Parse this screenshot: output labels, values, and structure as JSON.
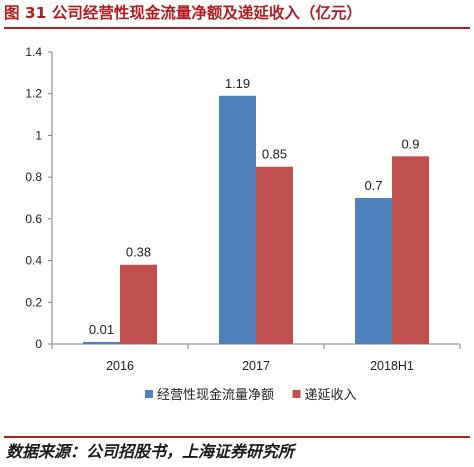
{
  "header": {
    "title": "图 31  公司经营性现金流量净额及递延收入（亿元）"
  },
  "footer": {
    "source": "数据来源：公司招股书，上海证券研究所"
  },
  "colors": {
    "accent": "#b01e23",
    "series_blue": "#4f81bd",
    "series_red": "#c0504d"
  },
  "chart_data": {
    "type": "bar",
    "categories": [
      "2016",
      "2017",
      "2018H1"
    ],
    "series": [
      {
        "name": "经营性现金流量净额",
        "values": [
          0.01,
          1.19,
          0.7
        ],
        "labels": [
          "0.01",
          "1.19",
          "0.7"
        ],
        "color": "#4f81bd"
      },
      {
        "name": "递延收入",
        "values": [
          0.38,
          0.85,
          0.9
        ],
        "labels": [
          "0.38",
          "0.85",
          "0.9"
        ],
        "color": "#c0504d"
      }
    ],
    "ylim": [
      0,
      1.4
    ],
    "yticks": [
      "0",
      "0.2",
      "0.4",
      "0.6",
      "0.8",
      "1",
      "1.2",
      "1.4"
    ],
    "title": "",
    "xlabel": "",
    "ylabel": "",
    "grid": false,
    "legend_position": "bottom"
  }
}
